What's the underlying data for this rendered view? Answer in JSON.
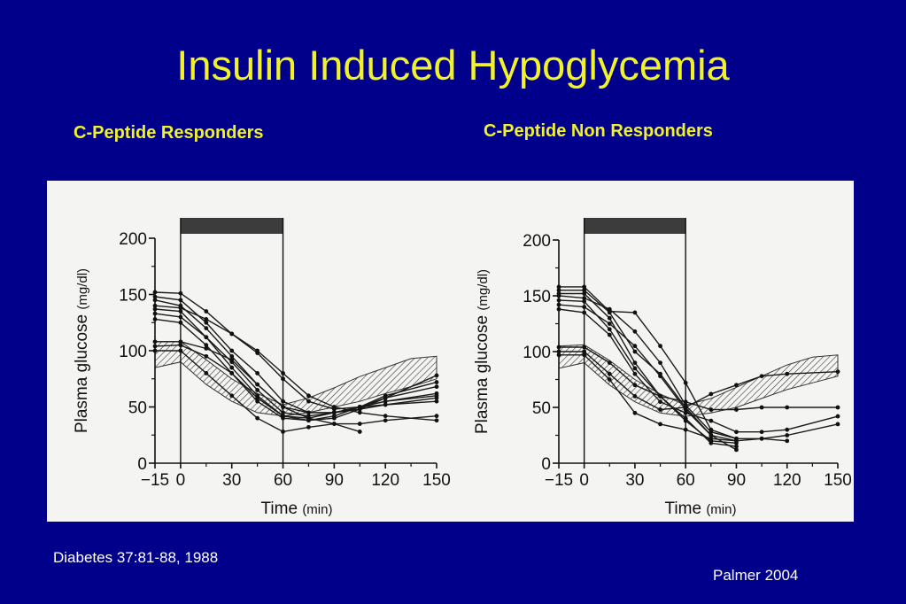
{
  "slide": {
    "title": "Insulin Induced Hypoglycemia",
    "subheads": {
      "left": "C-Peptide Responders",
      "right": "C-Peptide Non Responders"
    },
    "citation": "Diabetes 37:81-88, 1988",
    "credit": "Palmer 2004"
  },
  "colors": {
    "background": "#00008a",
    "title": "#f2f22a",
    "footer": "#ffffff",
    "panel": "#f4f4f2",
    "ink": "#111111"
  },
  "chart_data": [
    {
      "type": "line",
      "title": "C-Peptide Responders",
      "xlabel": "Time",
      "xlabel_unit": "(min)",
      "ylabel": "Plasma glucose",
      "ylabel_unit": "(mg/dl)",
      "xlim": [
        -15,
        150
      ],
      "ylim": [
        0,
        200
      ],
      "xticks": [
        -15,
        0,
        30,
        60,
        90,
        120,
        150
      ],
      "xtick_labels": [
        "−15",
        "0",
        "30",
        "60",
        "90",
        "120",
        "150"
      ],
      "yticks": [
        0,
        50,
        100,
        150,
        200
      ],
      "yticks_minor": [
        25,
        75,
        125,
        175
      ],
      "infusion_bar": {
        "start": 0,
        "end": 60
      },
      "normal_band": {
        "x": [
          -15,
          0,
          15,
          30,
          45,
          60,
          75,
          90,
          105,
          120,
          135,
          150
        ],
        "lower": [
          85,
          90,
          70,
          55,
          45,
          42,
          45,
          50,
          55,
          62,
          68,
          75
        ],
        "upper": [
          108,
          108,
          92,
          75,
          62,
          52,
          58,
          67,
          77,
          85,
          93,
          95
        ]
      },
      "series": [
        {
          "x": [
            -15,
            0,
            15,
            30,
            45,
            60,
            75,
            90,
            105,
            120,
            150
          ],
          "y": [
            152,
            151,
            135,
            115,
            98,
            75,
            55,
            48,
            50,
            52,
            55
          ]
        },
        {
          "x": [
            -15,
            0,
            15,
            30,
            45,
            60,
            75,
            90,
            105,
            120,
            150
          ],
          "y": [
            148,
            145,
            125,
            100,
            80,
            55,
            45,
            45,
            50,
            55,
            62
          ]
        },
        {
          "x": [
            -15,
            0,
            15,
            30,
            45,
            60,
            75,
            90,
            105,
            120,
            150
          ],
          "y": [
            145,
            140,
            120,
            95,
            70,
            50,
            40,
            35,
            35,
            38,
            42
          ]
        },
        {
          "x": [
            -15,
            0,
            15,
            30,
            45,
            60,
            75,
            90,
            105,
            120,
            150
          ],
          "y": [
            140,
            138,
            128,
            115,
            100,
            80,
            60,
            50,
            45,
            42,
            38
          ]
        },
        {
          "x": [
            -15,
            0,
            15,
            30,
            45,
            60,
            75,
            90,
            105,
            120,
            150
          ],
          "y": [
            137,
            135,
            112,
            85,
            60,
            42,
            40,
            45,
            50,
            55,
            60
          ]
        },
        {
          "x": [
            -15,
            0,
            15,
            30,
            45,
            60,
            75,
            90,
            105,
            120,
            150
          ],
          "y": [
            133,
            130,
            112,
            90,
            65,
            45,
            42,
            45,
            48,
            52,
            58
          ]
        },
        {
          "x": [
            -15,
            0,
            15,
            30,
            45,
            60,
            75,
            90,
            105,
            120,
            150
          ],
          "y": [
            128,
            125,
            105,
            80,
            55,
            40,
            38,
            42,
            50,
            58,
            68
          ]
        },
        {
          "x": [
            -15,
            0,
            15,
            30,
            45,
            60,
            75,
            90,
            105,
            120,
            150
          ],
          "y": [
            108,
            108,
            102,
            92,
            70,
            50,
            45,
            45,
            50,
            60,
            72
          ]
        },
        {
          "x": [
            -15,
            0,
            15,
            30,
            45,
            60,
            75,
            90,
            105,
            120,
            150
          ],
          "y": [
            104,
            105,
            95,
            80,
            58,
            42,
            38,
            40,
            48,
            58,
            78
          ]
        },
        {
          "x": [
            -15,
            0,
            15,
            30,
            45,
            60,
            75,
            90,
            105
          ],
          "y": [
            100,
            100,
            80,
            60,
            40,
            28,
            32,
            35,
            28
          ]
        }
      ]
    },
    {
      "type": "line",
      "title": "C-Peptide Non Responders",
      "xlabel": "Time",
      "xlabel_unit": "(min)",
      "ylabel": "Plasma glucose",
      "ylabel_unit": "(mg/dl)",
      "xlim": [
        -15,
        150
      ],
      "ylim": [
        0,
        200
      ],
      "xticks": [
        -15,
        0,
        30,
        60,
        90,
        120,
        150
      ],
      "xtick_labels": [
        "−15",
        "0",
        "30",
        "60",
        "90",
        "120",
        "150"
      ],
      "yticks": [
        0,
        50,
        100,
        150,
        200
      ],
      "yticks_minor": [
        25,
        75,
        125,
        175
      ],
      "infusion_bar": {
        "start": 0,
        "end": 60
      },
      "normal_band": {
        "x": [
          -15,
          0,
          15,
          30,
          45,
          60,
          75,
          90,
          105,
          120,
          135,
          150
        ],
        "lower": [
          85,
          90,
          70,
          55,
          45,
          42,
          45,
          50,
          58,
          66,
          72,
          78
        ],
        "upper": [
          105,
          106,
          92,
          75,
          62,
          52,
          58,
          68,
          78,
          88,
          95,
          97
        ]
      },
      "series": [
        {
          "x": [
            -15,
            0,
            15,
            30,
            45,
            60,
            75,
            90,
            105,
            120,
            150
          ],
          "y": [
            158,
            158,
            136,
            135,
            105,
            72,
            30,
            22,
            22,
            25,
            35
          ]
        },
        {
          "x": [
            -15,
            0,
            15,
            30,
            45,
            60,
            75,
            90,
            105,
            120
          ],
          "y": [
            155,
            155,
            135,
            100,
            80,
            50,
            25,
            20,
            22,
            20
          ]
        },
        {
          "x": [
            -15,
            0,
            15,
            30,
            45,
            60,
            75,
            90
          ],
          "y": [
            152,
            152,
            130,
            90,
            60,
            40,
            18,
            15
          ]
        },
        {
          "x": [
            -15,
            0,
            15,
            30,
            45,
            60,
            75,
            90
          ],
          "y": [
            150,
            148,
            138,
            118,
            90,
            52,
            28,
            22
          ]
        },
        {
          "x": [
            -15,
            0,
            15,
            30,
            45,
            60,
            75,
            90
          ],
          "y": [
            146,
            145,
            120,
            85,
            60,
            38,
            20,
            18
          ]
        },
        {
          "x": [
            -15,
            0,
            15,
            30,
            45,
            60,
            75,
            90
          ],
          "y": [
            142,
            140,
            125,
            105,
            78,
            48,
            25,
            12
          ]
        },
        {
          "x": [
            -15,
            0,
            15,
            30,
            45,
            60,
            75,
            90,
            105,
            120,
            150
          ],
          "y": [
            138,
            135,
            115,
            80,
            55,
            45,
            38,
            28,
            28,
            30,
            42
          ]
        },
        {
          "x": [
            -15,
            0,
            15,
            30,
            45,
            60,
            75,
            90,
            105,
            120,
            150
          ],
          "y": [
            104,
            104,
            90,
            70,
            60,
            55,
            48,
            48,
            50,
            50,
            50
          ]
        },
        {
          "x": [
            -15,
            0,
            15,
            30,
            45,
            60,
            75,
            90,
            105,
            120,
            150
          ],
          "y": [
            100,
            100,
            80,
            60,
            48,
            50,
            62,
            70,
            78,
            80,
            82
          ]
        },
        {
          "x": [
            -15,
            0,
            15,
            30,
            45,
            60,
            75,
            90
          ],
          "y": [
            97,
            97,
            75,
            45,
            35,
            30,
            22,
            20
          ]
        }
      ]
    }
  ]
}
